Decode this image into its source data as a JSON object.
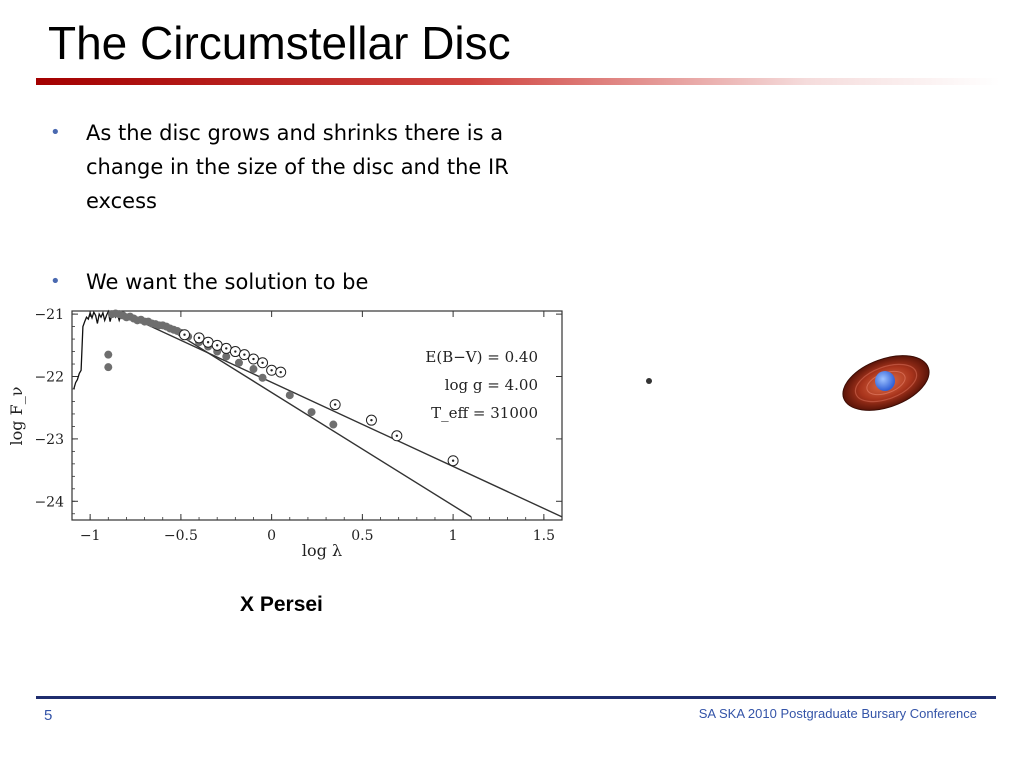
{
  "slide": {
    "title": "The Circumstellar Disc",
    "bullets": [
      "As the disc grows and shrinks there is a change in the size of the disc and the IR excess",
      "We want the solution to be"
    ],
    "caption": "X Persei",
    "page_number": "5",
    "footer": "SA SKA 2010 Postgraduate Bursary Conference"
  },
  "colors": {
    "title_rule": "#a30000",
    "footer_rule": "#1f2d6e",
    "footer_text": "#3454a8",
    "bullet": "#4a69b0"
  },
  "icons": {
    "bullet": "bullet-dot-icon",
    "illustration": "star-with-disc-icon"
  },
  "chart_data": {
    "type": "scatter",
    "title": "",
    "xlabel": "log λ",
    "ylabel": "log F_ν",
    "xlim": [
      -1.1,
      1.6
    ],
    "ylim": [
      -24.3,
      -20.95
    ],
    "x_ticks": [
      -1,
      -0.5,
      0,
      0.5,
      1,
      1.5
    ],
    "x_tick_labels": [
      "−1",
      "−0.5",
      "0",
      "0.5",
      "1",
      "1.5"
    ],
    "y_ticks": [
      -21,
      -22,
      -23,
      -24
    ],
    "y_tick_labels": [
      "−21",
      "−22",
      "−23",
      "−24"
    ],
    "annotations": [
      "E(B−V) = 0.40",
      "log g = 4.00",
      "T_eff = 31000"
    ],
    "series": [
      {
        "kind": "model-spectrum",
        "x": [
          -1.09,
          -1.08,
          -1.07,
          -1.06,
          -1.05,
          -1.04,
          -1.03,
          -1.02,
          -1.01,
          -1.0,
          -0.99,
          -0.98,
          -0.97,
          -0.96,
          -0.95,
          -0.94,
          -0.93,
          -0.92,
          -0.91,
          -0.9,
          -0.89,
          -0.88,
          -0.87,
          -0.86,
          -0.85,
          -0.84,
          -0.83,
          -0.82,
          -0.8,
          -0.78,
          -0.75,
          -0.72,
          -0.7
        ],
        "y": [
          -22.2,
          -22.1,
          -22.05,
          -21.95,
          -21.9,
          -21.2,
          -21.12,
          -21.05,
          -21.08,
          -20.98,
          -21.06,
          -20.97,
          -21.02,
          -21.15,
          -21.0,
          -21.05,
          -20.98,
          -21.1,
          -21.02,
          -20.96,
          -21.12,
          -21.0,
          -20.98,
          -21.05,
          -21.0,
          -21.1,
          -21.02,
          -21.06,
          -21.08,
          -21.05,
          -21.1,
          -21.1,
          -21.15
        ]
      },
      {
        "kind": "fit-line",
        "x": [
          -0.7,
          1.6
        ],
        "y": [
          -21.15,
          -24.25
        ]
      },
      {
        "kind": "fit-line",
        "x": [
          -0.5,
          1.1
        ],
        "y": [
          -21.35,
          -24.25
        ]
      },
      {
        "kind": "observed-filled",
        "x": [
          -0.9,
          -0.9,
          -0.88,
          -0.86,
          -0.84,
          -0.82,
          -0.8,
          -0.78,
          -0.76,
          -0.74,
          -0.72,
          -0.7,
          -0.68,
          -0.66,
          -0.64,
          -0.62,
          -0.6,
          -0.58,
          -0.56,
          -0.54,
          -0.52,
          -0.5,
          -0.48,
          -0.46,
          -0.4,
          -0.35,
          -0.3,
          -0.25,
          -0.18,
          -0.1,
          -0.05,
          0.1,
          0.22,
          0.34
        ],
        "y": [
          -21.65,
          -21.85,
          -21.0,
          -20.99,
          -21.0,
          -21.02,
          -21.05,
          -21.04,
          -21.07,
          -21.1,
          -21.09,
          -21.12,
          -21.12,
          -21.15,
          -21.16,
          -21.18,
          -21.18,
          -21.2,
          -21.23,
          -21.25,
          -21.27,
          -21.3,
          -21.33,
          -21.36,
          -21.45,
          -21.52,
          -21.6,
          -21.68,
          -21.78,
          -21.88,
          -22.02,
          -22.3,
          -22.57,
          -22.77
        ]
      },
      {
        "kind": "observed-open",
        "x": [
          -0.48,
          -0.4,
          -0.35,
          -0.3,
          -0.25,
          -0.2,
          -0.15,
          -0.1,
          -0.05,
          0.0,
          0.05,
          0.35,
          0.55,
          0.69,
          1.0
        ],
        "y": [
          -21.33,
          -21.38,
          -21.45,
          -21.5,
          -21.55,
          -21.6,
          -21.65,
          -21.72,
          -21.78,
          -21.9,
          -21.93,
          -22.45,
          -22.7,
          -22.95,
          -23.35
        ]
      }
    ]
  }
}
